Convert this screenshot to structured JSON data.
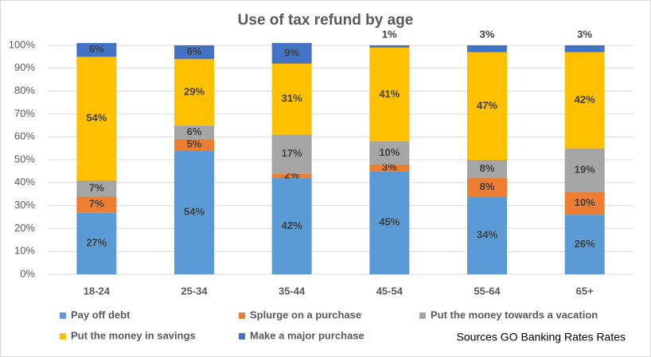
{
  "chart_data": {
    "type": "stacked_bar",
    "title": "Use of tax refund by age",
    "categories": [
      "18-24",
      "25-34",
      "35-44",
      "45-54",
      "55-64",
      "65+"
    ],
    "series": [
      {
        "name": "Pay off debt",
        "color": "#5b9bd5",
        "values": [
          27,
          54,
          42,
          45,
          34,
          26
        ],
        "value_labels": [
          "27%",
          "54%",
          "42%",
          "45%",
          "34%",
          "26%"
        ]
      },
      {
        "name": "Splurge on a purchase",
        "color": "#ed7d31",
        "values": [
          7,
          5,
          2,
          3,
          8,
          10
        ],
        "value_labels": [
          "7%",
          "5%",
          "2%",
          "3%",
          "8%",
          "10%"
        ]
      },
      {
        "name": "Put the money towards a vacation",
        "color": "#a5a5a5",
        "values": [
          7,
          6,
          17,
          10,
          8,
          19
        ],
        "value_labels": [
          "7%",
          "6%",
          "17%",
          "10%",
          "8%",
          "19%"
        ]
      },
      {
        "name": "Put the money in savings",
        "color": "#ffc000",
        "values": [
          54,
          29,
          31,
          41,
          47,
          42
        ],
        "value_labels": [
          "54%",
          "29%",
          "31%",
          "41%",
          "47%",
          "42%"
        ]
      },
      {
        "name": "Make a major purchase",
        "color": "#4472c4",
        "values": [
          6,
          6,
          9,
          1,
          3,
          3
        ],
        "value_labels": [
          "6%",
          "6%",
          "9%",
          "1%",
          "3%",
          "3%"
        ]
      }
    ],
    "ylim": [
      0,
      100
    ],
    "yticks": [
      {
        "value": 0,
        "label": "0%"
      },
      {
        "value": 10,
        "label": "10%"
      },
      {
        "value": 20,
        "label": "20%"
      },
      {
        "value": 30,
        "label": "30%"
      },
      {
        "value": 40,
        "label": "40%"
      },
      {
        "value": 50,
        "label": "50%"
      },
      {
        "value": 60,
        "label": "60%"
      },
      {
        "value": 70,
        "label": "70%"
      },
      {
        "value": 80,
        "label": "80%"
      },
      {
        "value": 90,
        "label": "90%"
      },
      {
        "value": 100,
        "label": "100%"
      }
    ],
    "grid": true,
    "annotation": "Sources GO Banking Rates Rates"
  }
}
